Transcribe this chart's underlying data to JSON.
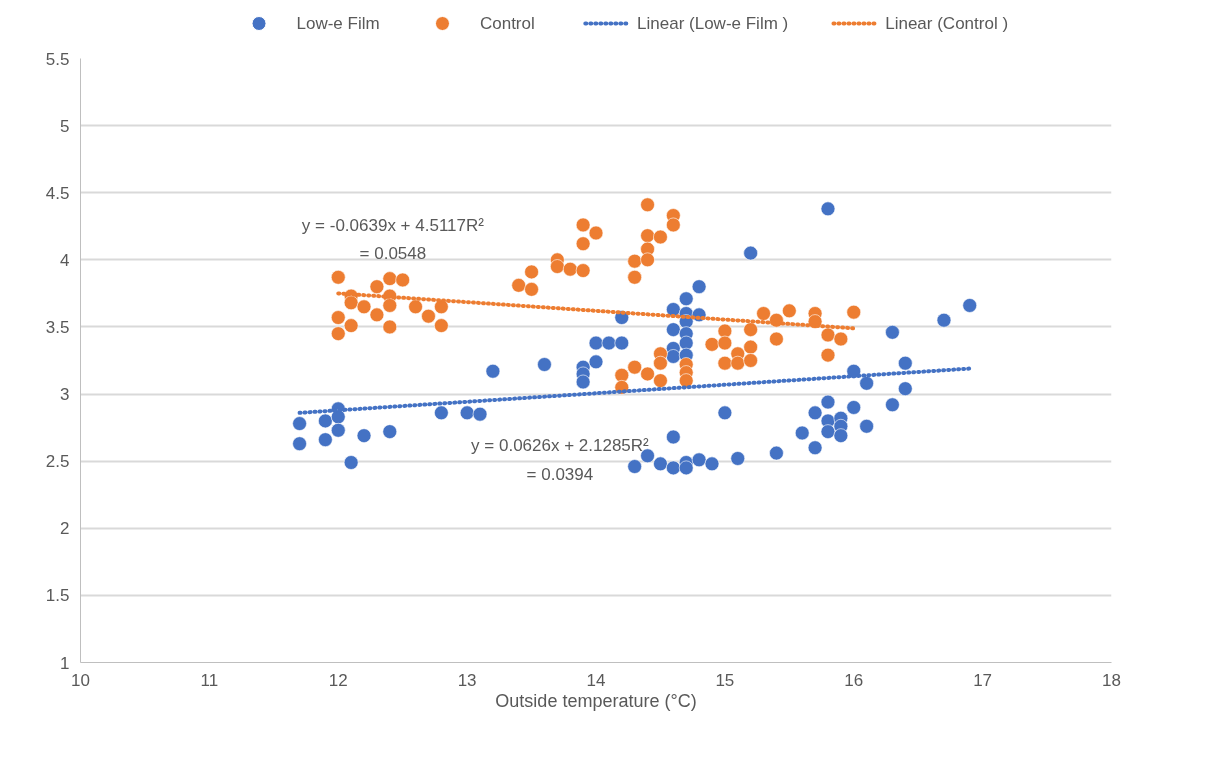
{
  "chart_data": {
    "type": "scatter",
    "xlabel": "Outside temperature (°C)",
    "xlim": [
      10,
      18
    ],
    "xticks": [
      10,
      11,
      12,
      13,
      14,
      15,
      16,
      17,
      18
    ],
    "ylim": [
      1,
      5.5
    ],
    "yticks": [
      1,
      1.5,
      2,
      2.5,
      3,
      3.5,
      4,
      4.5,
      5,
      5.5
    ],
    "grid": "y",
    "legend": "top",
    "marker": "circle",
    "series": [
      {
        "name": "Low-e Film ",
        "color": "#4472c4",
        "x": [
          11.7,
          11.7,
          11.9,
          11.9,
          12.0,
          12.0,
          12.0,
          12.1,
          12.2,
          12.4,
          12.8,
          13.0,
          13.1,
          13.2,
          13.6,
          13.9,
          13.9,
          13.9,
          14.0,
          14.0,
          14.1,
          14.2,
          14.2,
          14.3,
          14.4,
          14.5,
          14.6,
          14.6,
          14.6,
          14.6,
          14.6,
          14.6,
          14.7,
          14.7,
          14.7,
          14.7,
          14.7,
          14.7,
          14.7,
          14.7,
          14.8,
          14.8,
          14.8,
          14.9,
          15.0,
          15.1,
          15.2,
          15.4,
          15.6,
          15.7,
          15.7,
          15.8,
          15.8,
          15.8,
          15.8,
          15.9,
          15.9,
          15.9,
          16.0,
          16.0,
          16.1,
          16.1,
          16.3,
          16.3,
          16.4,
          16.4,
          16.7,
          16.9
        ],
        "values": [
          2.78,
          2.63,
          2.8,
          2.66,
          2.89,
          2.83,
          2.73,
          2.49,
          2.69,
          2.72,
          2.86,
          2.86,
          2.85,
          3.17,
          3.22,
          3.2,
          3.15,
          3.09,
          3.38,
          3.24,
          3.38,
          3.38,
          3.57,
          2.46,
          2.54,
          2.48,
          3.63,
          3.48,
          3.34,
          3.28,
          2.68,
          2.45,
          3.71,
          3.6,
          3.54,
          3.45,
          3.38,
          3.29,
          2.49,
          2.45,
          3.8,
          3.59,
          2.51,
          2.48,
          2.86,
          2.52,
          4.05,
          2.56,
          2.71,
          2.86,
          2.6,
          4.38,
          2.94,
          2.8,
          2.72,
          2.82,
          2.76,
          2.69,
          3.17,
          2.9,
          3.08,
          2.76,
          3.46,
          2.92,
          3.23,
          3.04,
          3.55,
          3.66
        ]
      },
      {
        "name": "Control ",
        "color": "#ed7d31",
        "x": [
          12.0,
          12.0,
          12.0,
          12.1,
          12.1,
          12.1,
          12.2,
          12.3,
          12.3,
          12.4,
          12.4,
          12.4,
          12.4,
          12.5,
          12.6,
          12.7,
          12.8,
          12.8,
          13.4,
          13.5,
          13.5,
          13.7,
          13.7,
          13.8,
          13.9,
          13.9,
          13.9,
          14.0,
          14.2,
          14.2,
          14.3,
          14.3,
          14.3,
          14.4,
          14.4,
          14.4,
          14.4,
          14.4,
          14.5,
          14.5,
          14.5,
          14.5,
          14.6,
          14.6,
          14.7,
          14.7,
          14.7,
          14.9,
          15.0,
          15.0,
          15.0,
          15.1,
          15.1,
          15.2,
          15.2,
          15.2,
          15.3,
          15.4,
          15.4,
          15.5,
          15.7,
          15.7,
          15.8,
          15.8,
          15.9,
          16.0
        ],
        "values": [
          3.87,
          3.57,
          3.45,
          3.73,
          3.68,
          3.51,
          3.65,
          3.8,
          3.59,
          3.86,
          3.73,
          3.66,
          3.5,
          3.85,
          3.65,
          3.58,
          3.65,
          3.51,
          3.81,
          3.91,
          3.78,
          4.0,
          3.95,
          3.93,
          3.92,
          4.12,
          4.26,
          4.2,
          3.14,
          3.05,
          3.2,
          3.99,
          3.87,
          4.41,
          4.18,
          4.08,
          4.0,
          3.15,
          4.17,
          3.3,
          3.23,
          3.1,
          4.33,
          4.26,
          3.22,
          3.16,
          3.1,
          3.37,
          3.47,
          3.38,
          3.23,
          3.3,
          3.23,
          3.48,
          3.35,
          3.25,
          3.6,
          3.55,
          3.41,
          3.62,
          3.6,
          3.54,
          3.44,
          3.29,
          3.41,
          3.61
        ]
      },
      {
        "name": "Linear (Low-e Film )",
        "type": "line",
        "color": "#4472c4",
        "line_style": "dotted",
        "marker": "none",
        "x": [
          11.7,
          16.9
        ],
        "values": [
          2.86,
          3.19
        ]
      },
      {
        "name": "Linear (Control )",
        "type": "line",
        "color": "#ed7d31",
        "line_style": "dotted",
        "marker": "none",
        "x": [
          12.0,
          16.0
        ],
        "values": [
          3.75,
          3.49
        ]
      }
    ],
    "annotations": [
      "y = -0.0639x + 4.5117R²\n= 0.0548",
      "y = 0.0626x + 2.1285R²\n= 0.0394"
    ]
  }
}
